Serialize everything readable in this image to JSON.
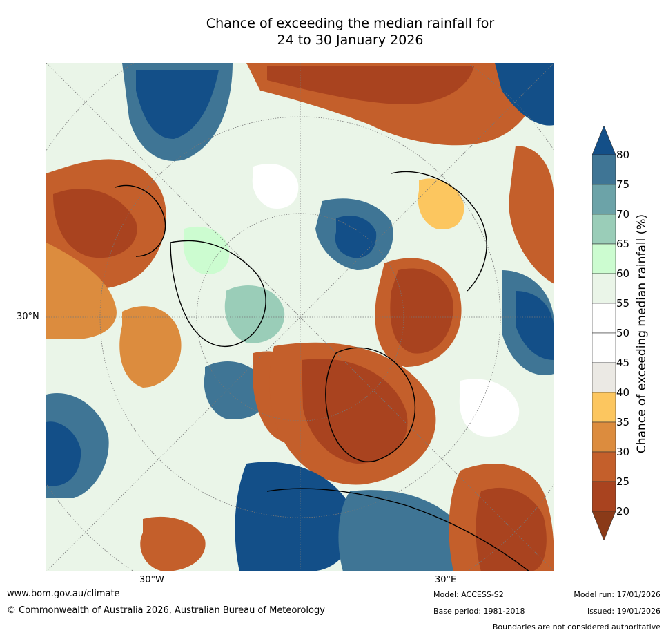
{
  "title": {
    "line1": "Chance of exceeding the median rainfall for",
    "line2": "24 to 30 January 2026"
  },
  "map": {
    "projection": "north polar stereographic",
    "labels": {
      "lat_30n": "30°N",
      "lon_30w": "30°W",
      "lon_30e": "30°E"
    }
  },
  "colorbar": {
    "label": "Chance of exceeding median rainfall (%)",
    "ticks": [
      "20",
      "25",
      "30",
      "35",
      "40",
      "45",
      "50",
      "55",
      "60",
      "65",
      "70",
      "75",
      "80"
    ],
    "bins": [
      {
        "range": "<20",
        "color": "#8a3a18"
      },
      {
        "range": "20-25",
        "color": "#a9431f"
      },
      {
        "range": "25-30",
        "color": "#c45f2b"
      },
      {
        "range": "30-35",
        "color": "#dc8c3e"
      },
      {
        "range": "35-40",
        "color": "#fcc65f"
      },
      {
        "range": "40-45",
        "color": "#ebe9e4"
      },
      {
        "range": "45-50",
        "color": "#ffffff"
      },
      {
        "range": "50-55",
        "color": "#ffffff"
      },
      {
        "range": "55-60",
        "color": "#eaf5e8"
      },
      {
        "range": "60-65",
        "color": "#ccfcd0"
      },
      {
        "range": "65-70",
        "color": "#9acdb8"
      },
      {
        "range": "70-75",
        "color": "#6ca3a8"
      },
      {
        "range": "75-80",
        "color": "#3f7595"
      },
      {
        "range": ">80",
        "color": "#134f88"
      }
    ]
  },
  "footer": {
    "website": "www.bom.gov.au/climate",
    "copyright": "© Commonwealth of Australia 2026, Australian Bureau of Meteorology",
    "model": "Model: ACCESS-S2",
    "base_period": "Base period: 1981-2018",
    "model_run": "Model run: 17/01/2026",
    "issued": "Issued: 19/01/2026",
    "disclaimer": "Boundaries are not considered authoritative"
  }
}
